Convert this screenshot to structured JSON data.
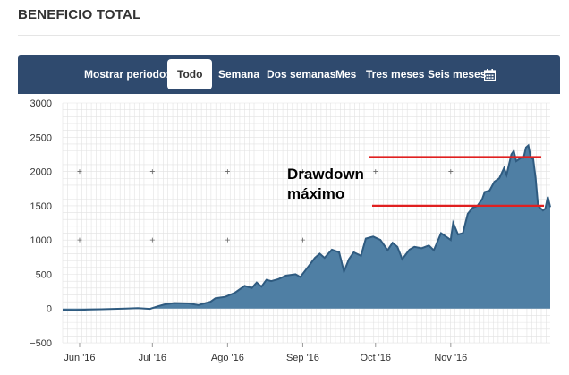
{
  "page": {
    "title": "BENEFICIO TOTAL"
  },
  "period": {
    "label": "Mostrar periodo:",
    "tabs": [
      {
        "label": "Todo",
        "active": true
      },
      {
        "label": "Semana",
        "active": false
      },
      {
        "label": "Dos semanas",
        "active": false
      },
      {
        "label": "Mes",
        "active": false
      },
      {
        "label": "Tres meses",
        "active": false
      },
      {
        "label": "Seis meses",
        "active": false
      }
    ],
    "calendar_icon": "calendar-icon"
  },
  "colors": {
    "header_bg": "#2f4a6e",
    "area_fill": "#4f7fa4",
    "area_line": "#2f5b80",
    "drawdown_lines": "#e02020",
    "grid": "#e2e2e2"
  },
  "annotation": {
    "line1": "Drawdown",
    "line2": "máximo"
  },
  "chart_data": {
    "type": "area",
    "title": "",
    "xlabel": "",
    "ylabel": "",
    "ylim": [
      -500,
      3000
    ],
    "yticks": [
      -500,
      0,
      500,
      1000,
      1500,
      2000,
      2500,
      3000
    ],
    "ytick_labels": [
      "−500",
      "0",
      "500",
      "1000",
      "1500",
      "2000",
      "2500",
      "3000"
    ],
    "xlim": [
      "2016-05-25",
      "2016-12-12"
    ],
    "xticks": [
      {
        "date": "2016-06-01",
        "label": "Jun '16"
      },
      {
        "date": "2016-07-01",
        "label": "Jul '16"
      },
      {
        "date": "2016-08-01",
        "label": "Ago '16"
      },
      {
        "date": "2016-09-01",
        "label": "Sep '16"
      },
      {
        "date": "2016-10-01",
        "label": "Oct '16"
      },
      {
        "date": "2016-11-01",
        "label": "Nov '16"
      }
    ],
    "grid": true,
    "series": [
      {
        "name": "",
        "points": [
          [
            "2016-05-25",
            -20
          ],
          [
            "2016-05-30",
            -25
          ],
          [
            "2016-06-04",
            -15
          ],
          [
            "2016-06-10",
            -10
          ],
          [
            "2016-06-15",
            -5
          ],
          [
            "2016-06-20",
            0
          ],
          [
            "2016-06-25",
            5
          ],
          [
            "2016-06-30",
            -5
          ],
          [
            "2016-07-03",
            30
          ],
          [
            "2016-07-06",
            60
          ],
          [
            "2016-07-10",
            80
          ],
          [
            "2016-07-16",
            75
          ],
          [
            "2016-07-20",
            50
          ],
          [
            "2016-07-25",
            100
          ],
          [
            "2016-07-27",
            150
          ],
          [
            "2016-07-31",
            170
          ],
          [
            "2016-08-04",
            230
          ],
          [
            "2016-08-08",
            330
          ],
          [
            "2016-08-11",
            300
          ],
          [
            "2016-08-13",
            380
          ],
          [
            "2016-08-15",
            320
          ],
          [
            "2016-08-17",
            420
          ],
          [
            "2016-08-19",
            400
          ],
          [
            "2016-08-22",
            430
          ],
          [
            "2016-08-25",
            480
          ],
          [
            "2016-08-29",
            500
          ],
          [
            "2016-08-31",
            460
          ],
          [
            "2016-09-03",
            600
          ],
          [
            "2016-09-06",
            740
          ],
          [
            "2016-09-08",
            800
          ],
          [
            "2016-09-10",
            740
          ],
          [
            "2016-09-13",
            860
          ],
          [
            "2016-09-16",
            820
          ],
          [
            "2016-09-18",
            540
          ],
          [
            "2016-09-20",
            720
          ],
          [
            "2016-09-22",
            820
          ],
          [
            "2016-09-25",
            770
          ],
          [
            "2016-09-27",
            1020
          ],
          [
            "2016-09-30",
            1050
          ],
          [
            "2016-10-03",
            1000
          ],
          [
            "2016-10-06",
            850
          ],
          [
            "2016-10-08",
            960
          ],
          [
            "2016-10-10",
            900
          ],
          [
            "2016-10-12",
            720
          ],
          [
            "2016-10-15",
            860
          ],
          [
            "2016-10-17",
            900
          ],
          [
            "2016-10-20",
            880
          ],
          [
            "2016-10-23",
            920
          ],
          [
            "2016-10-25",
            850
          ],
          [
            "2016-10-28",
            1100
          ],
          [
            "2016-10-30",
            1050
          ],
          [
            "2016-11-01",
            1000
          ],
          [
            "2016-11-02",
            1250
          ],
          [
            "2016-11-04",
            1080
          ],
          [
            "2016-11-06",
            1100
          ],
          [
            "2016-11-08",
            1380
          ],
          [
            "2016-11-10",
            1470
          ],
          [
            "2016-11-12",
            1500
          ],
          [
            "2016-11-14",
            1600
          ],
          [
            "2016-11-15",
            1700
          ],
          [
            "2016-11-17",
            1720
          ],
          [
            "2016-11-19",
            1850
          ],
          [
            "2016-11-21",
            1900
          ],
          [
            "2016-11-23",
            2050
          ],
          [
            "2016-11-24",
            1950
          ],
          [
            "2016-11-26",
            2250
          ],
          [
            "2016-11-27",
            2300
          ],
          [
            "2016-11-28",
            2150
          ],
          [
            "2016-11-30",
            2200
          ],
          [
            "2016-12-01",
            2200
          ],
          [
            "2016-12-02",
            2350
          ],
          [
            "2016-12-03",
            2380
          ],
          [
            "2016-12-04",
            2200
          ],
          [
            "2016-12-05",
            2180
          ],
          [
            "2016-12-06",
            1900
          ],
          [
            "2016-12-07",
            1500
          ],
          [
            "2016-12-09",
            1430
          ],
          [
            "2016-12-10",
            1460
          ],
          [
            "2016-12-11",
            1630
          ],
          [
            "2016-12-12",
            1480
          ]
        ]
      }
    ],
    "reference_lines": [
      {
        "y": 2210,
        "from": "2016-10-01",
        "to": "2016-12-10"
      },
      {
        "y": 1500,
        "from": "2016-10-01",
        "to": "2016-12-10"
      }
    ]
  }
}
